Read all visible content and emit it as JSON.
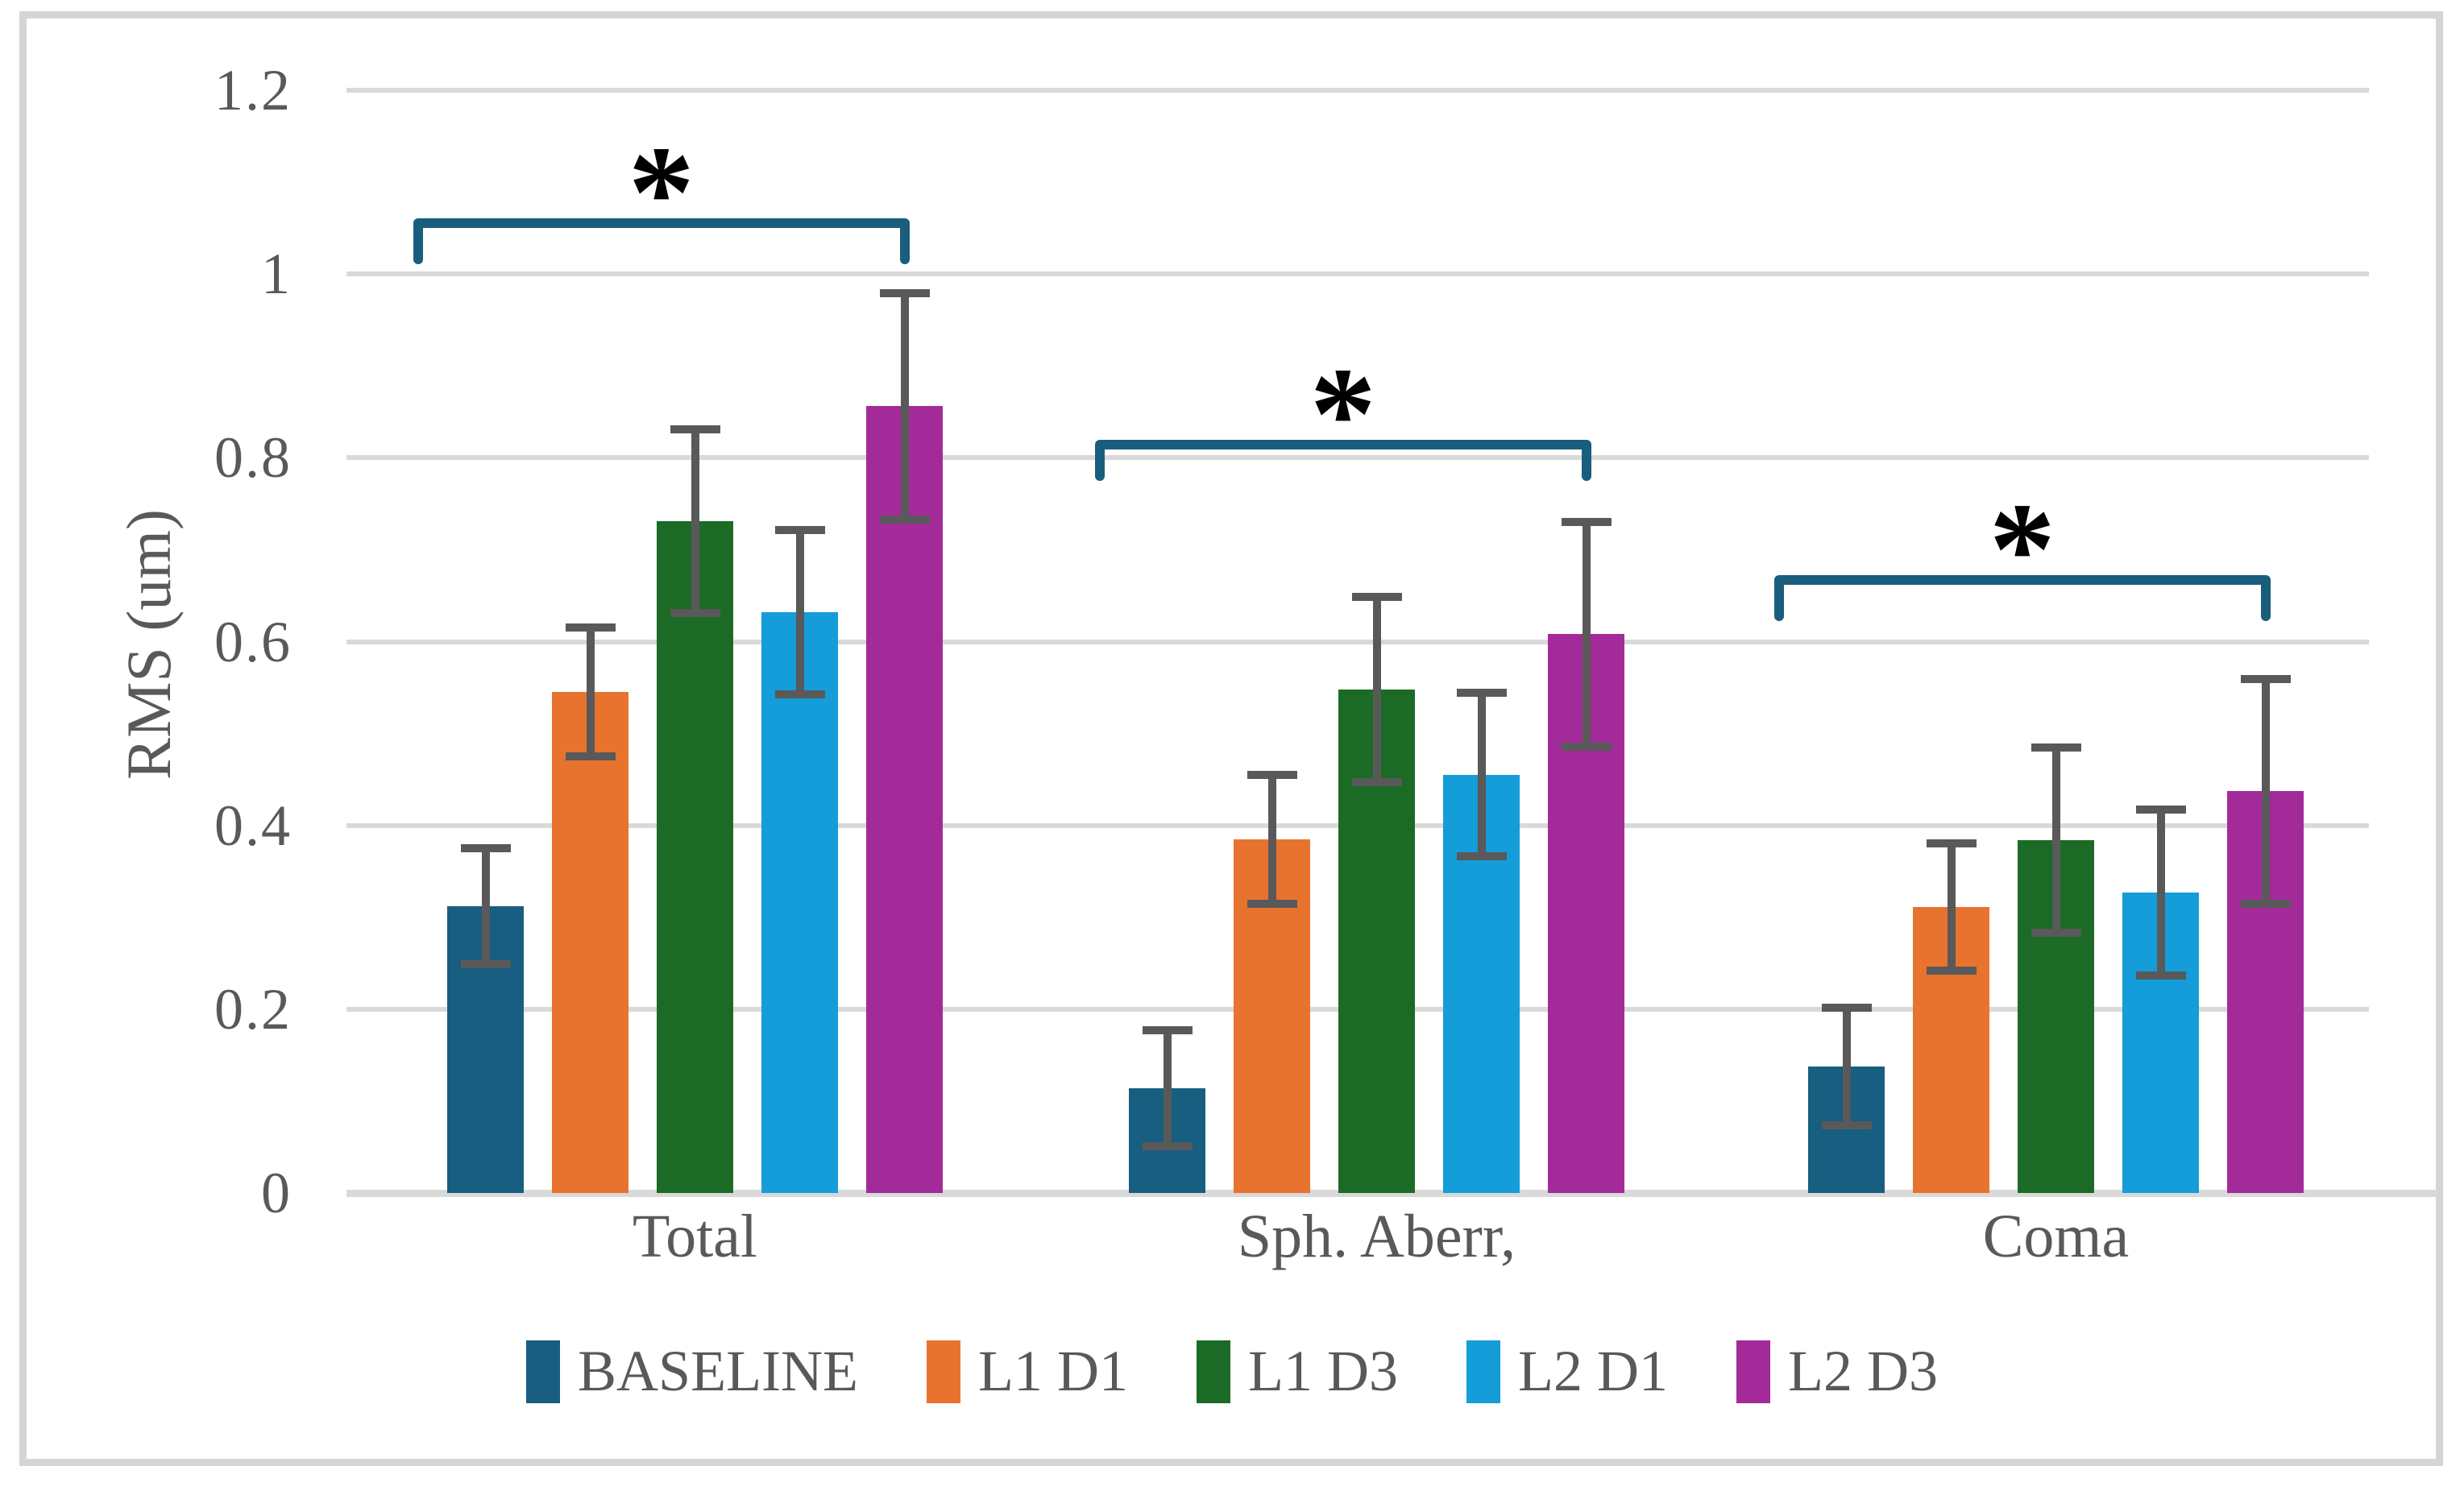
{
  "figure": {
    "background": "#FFFFFF",
    "frame_color": "#D5D5D5"
  },
  "colors": {
    "text": "#595959",
    "gridline": "#D9D9D9",
    "error_bar": "#595959",
    "bracket": "#1A5E7D",
    "asterisk": "#000000"
  },
  "chart_data": {
    "type": "bar",
    "title": "",
    "ylabel": "RMS (um)",
    "xlabel": "",
    "ylim": [
      0,
      1.2
    ],
    "grid": true,
    "legend_position": "bottom",
    "yticks": [
      {
        "value": 0,
        "label": "0"
      },
      {
        "value": 0.2,
        "label": "0.2"
      },
      {
        "value": 0.4,
        "label": "0.4"
      },
      {
        "value": 0.6,
        "label": "0.6"
      },
      {
        "value": 0.8,
        "label": "0.8"
      },
      {
        "value": 1,
        "label": "1"
      },
      {
        "value": 1.2,
        "label": "1.2"
      }
    ],
    "categories": [
      "Total",
      "Sph. Aberr,",
      "Coma"
    ],
    "series": [
      {
        "name": "BASELINE",
        "color": "#175E80",
        "values": [
          0.312,
          0.114,
          0.138
        ],
        "errors": [
          0.063,
          0.063,
          0.064
        ]
      },
      {
        "name": "L1 D1",
        "color": "#E8732E",
        "values": [
          0.545,
          0.385,
          0.311
        ],
        "errors": [
          0.07,
          0.07,
          0.069
        ]
      },
      {
        "name": "L1 D3",
        "color": "#1B6B26",
        "values": [
          0.731,
          0.548,
          0.384
        ],
        "errors": [
          0.1,
          0.101,
          0.101
        ]
      },
      {
        "name": "L2 D1",
        "color": "#149DD8",
        "values": [
          0.632,
          0.455,
          0.327
        ],
        "errors": [
          0.089,
          0.089,
          0.09
        ]
      },
      {
        "name": "L2 D3",
        "color": "#A32B99",
        "values": [
          0.856,
          0.608,
          0.437
        ],
        "errors": [
          0.123,
          0.122,
          0.122
        ]
      }
    ],
    "significance_brackets": [
      {
        "category": "Total",
        "label": "*",
        "from_series": "BASELINE",
        "to_series": "L2 D3",
        "y": 1.061,
        "drop": 0.05
      },
      {
        "category": "Sph. Aberr,",
        "label": "*",
        "from_series": "BASELINE",
        "to_series": "L2 D3",
        "y": 0.82,
        "drop": 0.045
      },
      {
        "category": "Coma",
        "label": "*",
        "from_series": "BASELINE",
        "to_series": "L2 D3",
        "y": 0.672,
        "drop": 0.05
      }
    ]
  }
}
